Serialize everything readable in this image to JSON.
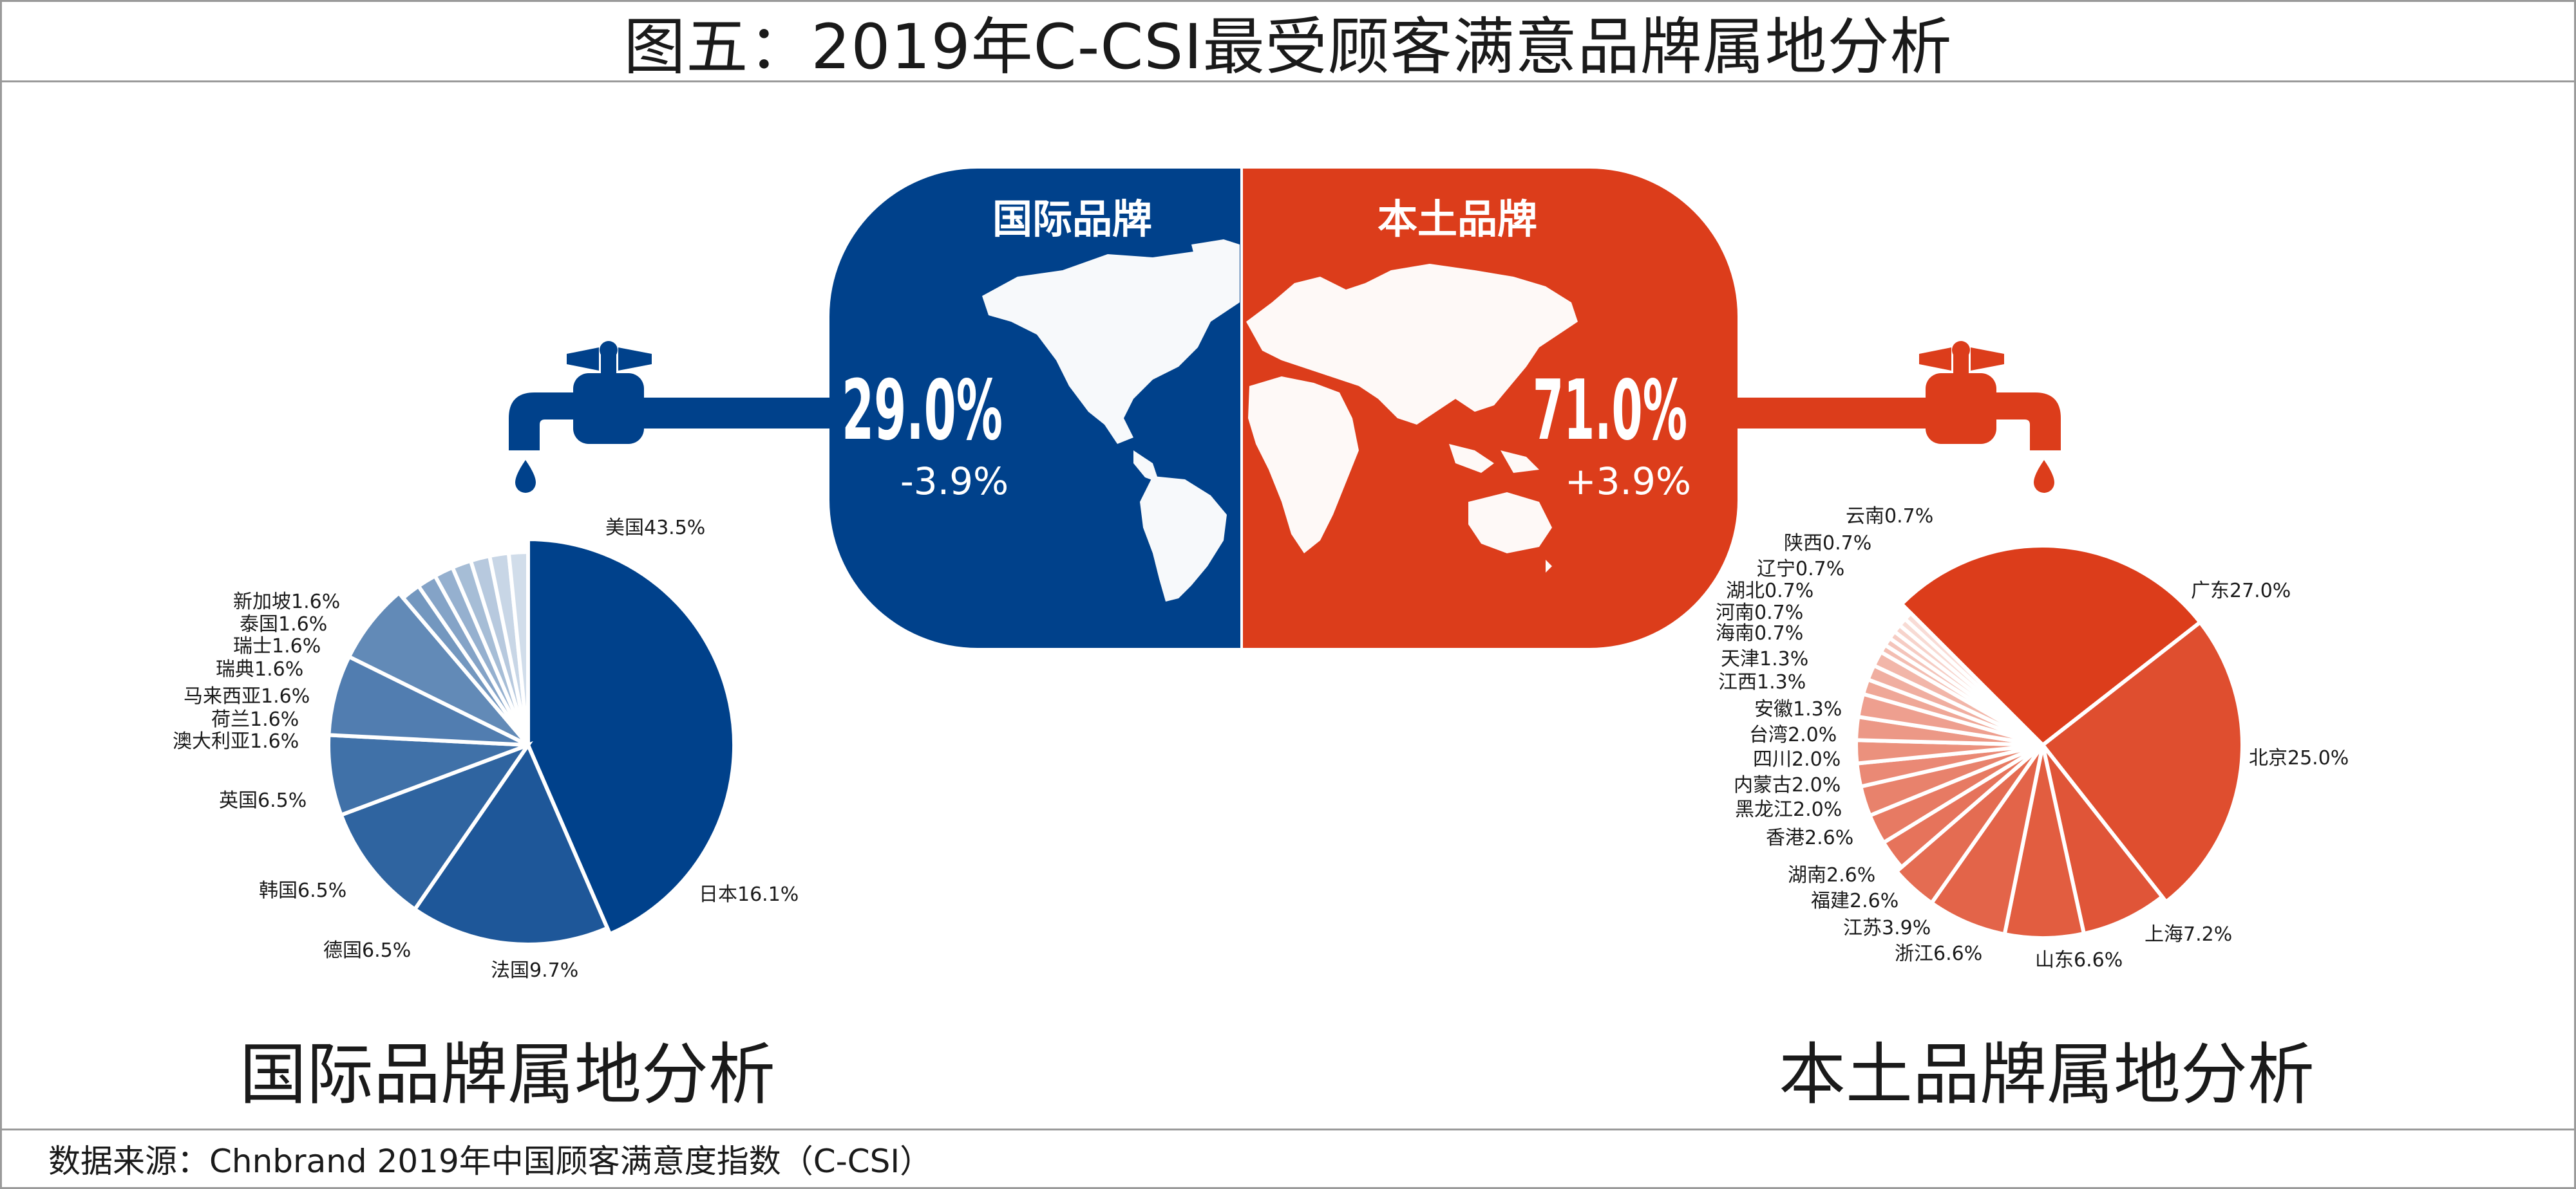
{
  "title": "图五：2019年C-CSI最受顾客满意品牌属地分析",
  "source_note": "数据来源：Chnbrand 2019年中国顾客满意度指数（C-CSI）",
  "colors": {
    "international": "#00418b",
    "domestic": "#dc3d1b",
    "frame": "#9a9a9a",
    "map": "#ffffff"
  },
  "center": {
    "international": {
      "label": "国际品牌",
      "share": "29.0%",
      "change": "-3.9%"
    },
    "domestic": {
      "label": "本土品牌",
      "share": "71.0%",
      "change": "+3.9%"
    }
  },
  "icons": {
    "left_faucet": "faucet-icon",
    "right_faucet": "faucet-icon",
    "world": "world-map-icon"
  },
  "chart_data": [
    {
      "type": "pie",
      "title": "国际品牌属地分析",
      "color": "#00418b",
      "slices": [
        {
          "label": "美国43.5%",
          "value": 43.5
        },
        {
          "label": "日本16.1%",
          "value": 16.1
        },
        {
          "label": "法国9.7%",
          "value": 9.7
        },
        {
          "label": "德国6.5%",
          "value": 6.5
        },
        {
          "label": "韩国6.5%",
          "value": 6.5
        },
        {
          "label": "英国6.5%",
          "value": 6.5
        },
        {
          "label": "澳大利亚1.6%",
          "value": 1.6
        },
        {
          "label": "荷兰1.6%",
          "value": 1.6
        },
        {
          "label": "马来西亚1.6%",
          "value": 1.6
        },
        {
          "label": "瑞典1.6%",
          "value": 1.6
        },
        {
          "label": "瑞士1.6%",
          "value": 1.6
        },
        {
          "label": "泰国1.6%",
          "value": 1.6
        },
        {
          "label": "新加坡1.6%",
          "value": 1.6
        }
      ]
    },
    {
      "type": "pie",
      "title": "本土品牌属地分析",
      "color": "#dc3d1b",
      "slices": [
        {
          "label": "广东27.0%",
          "value": 27.0
        },
        {
          "label": "北京25.0%",
          "value": 25.0
        },
        {
          "label": "上海7.2%",
          "value": 7.2
        },
        {
          "label": "山东6.6%",
          "value": 6.6
        },
        {
          "label": "浙江6.6%",
          "value": 6.6
        },
        {
          "label": "江苏3.9%",
          "value": 3.9
        },
        {
          "label": "福建2.6%",
          "value": 2.6
        },
        {
          "label": "湖南2.6%",
          "value": 2.6
        },
        {
          "label": "香港2.6%",
          "value": 2.6
        },
        {
          "label": "黑龙江2.0%",
          "value": 2.0
        },
        {
          "label": "内蒙古2.0%",
          "value": 2.0
        },
        {
          "label": "四川2.0%",
          "value": 2.0
        },
        {
          "label": "台湾2.0%",
          "value": 2.0
        },
        {
          "label": "安徽1.3%",
          "value": 1.3
        },
        {
          "label": "江西1.3%",
          "value": 1.3
        },
        {
          "label": "天津1.3%",
          "value": 1.3
        },
        {
          "label": "海南0.7%",
          "value": 0.7
        },
        {
          "label": "河南0.7%",
          "value": 0.7
        },
        {
          "label": "湖北0.7%",
          "value": 0.7
        },
        {
          "label": "辽宁0.7%",
          "value": 0.7
        },
        {
          "label": "陕西0.7%",
          "value": 0.7
        },
        {
          "label": "云南0.7%",
          "value": 0.7
        }
      ]
    }
  ]
}
